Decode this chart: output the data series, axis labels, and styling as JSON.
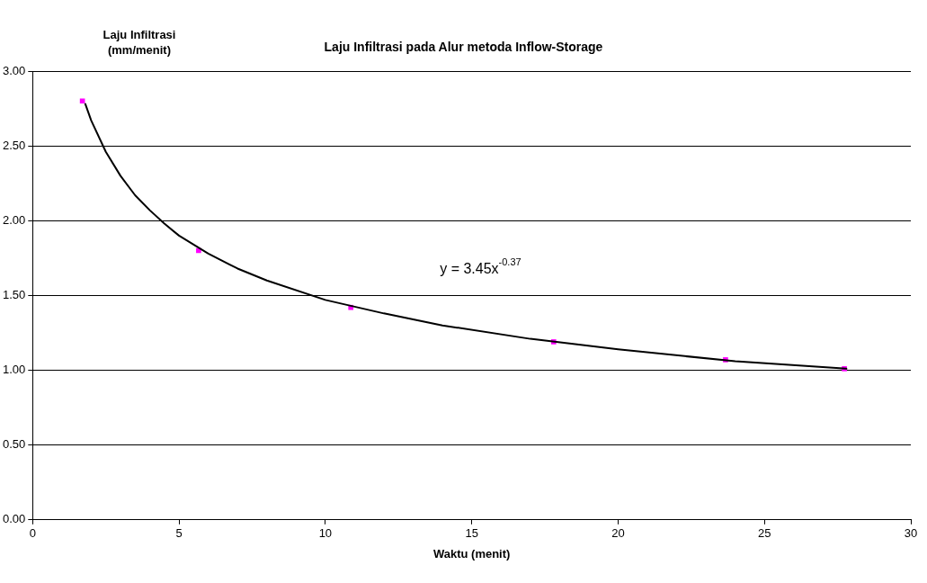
{
  "chart_data": {
    "type": "scatter",
    "title": "Laju Infiltrasi pada Alur metoda Inflow-Storage",
    "xlabel": "Waktu (menit)",
    "ylabel": "Laju Infiltrasi (mm/menit)",
    "series": [
      {
        "color": "#ff00ff",
        "marker": "square",
        "x": [
          1.7,
          5.67,
          10.87,
          17.8,
          23.67,
          27.73
        ],
        "values": [
          2.8,
          1.8,
          1.42,
          1.19,
          1.07,
          1.01
        ]
      },
      {
        "type": "line",
        "color": "#000000",
        "x": [
          1.8,
          2,
          2.5,
          3,
          3.5,
          4,
          4.5,
          5,
          6,
          7,
          8,
          10,
          12,
          14,
          17,
          20,
          24,
          27.8
        ],
        "values": [
          2.78,
          2.67,
          2.46,
          2.3,
          2.17,
          2.07,
          1.98,
          1.9,
          1.78,
          1.68,
          1.6,
          1.47,
          1.38,
          1.3,
          1.21,
          1.14,
          1.06,
          1.01
        ]
      }
    ],
    "annotations": [
      "y = 3.45x$^{-0.37}$"
    ],
    "xlim": [
      0,
      30
    ],
    "xticks": [
      0,
      5,
      10,
      15,
      20,
      25,
      30
    ],
    "ylim": [
      0,
      3
    ],
    "yticks": [
      {
        "value": 0,
        "label": "0.00"
      },
      {
        "value": 0.5,
        "label": "0.50"
      },
      {
        "value": 1,
        "label": "1.00"
      },
      {
        "value": 1.5,
        "label": "1.50"
      },
      {
        "value": 2,
        "label": "2.00"
      },
      {
        "value": 2.5,
        "label": "2.50"
      },
      {
        "value": 3,
        "label": "3.00"
      }
    ],
    "grid": "y",
    "legend": false
  }
}
